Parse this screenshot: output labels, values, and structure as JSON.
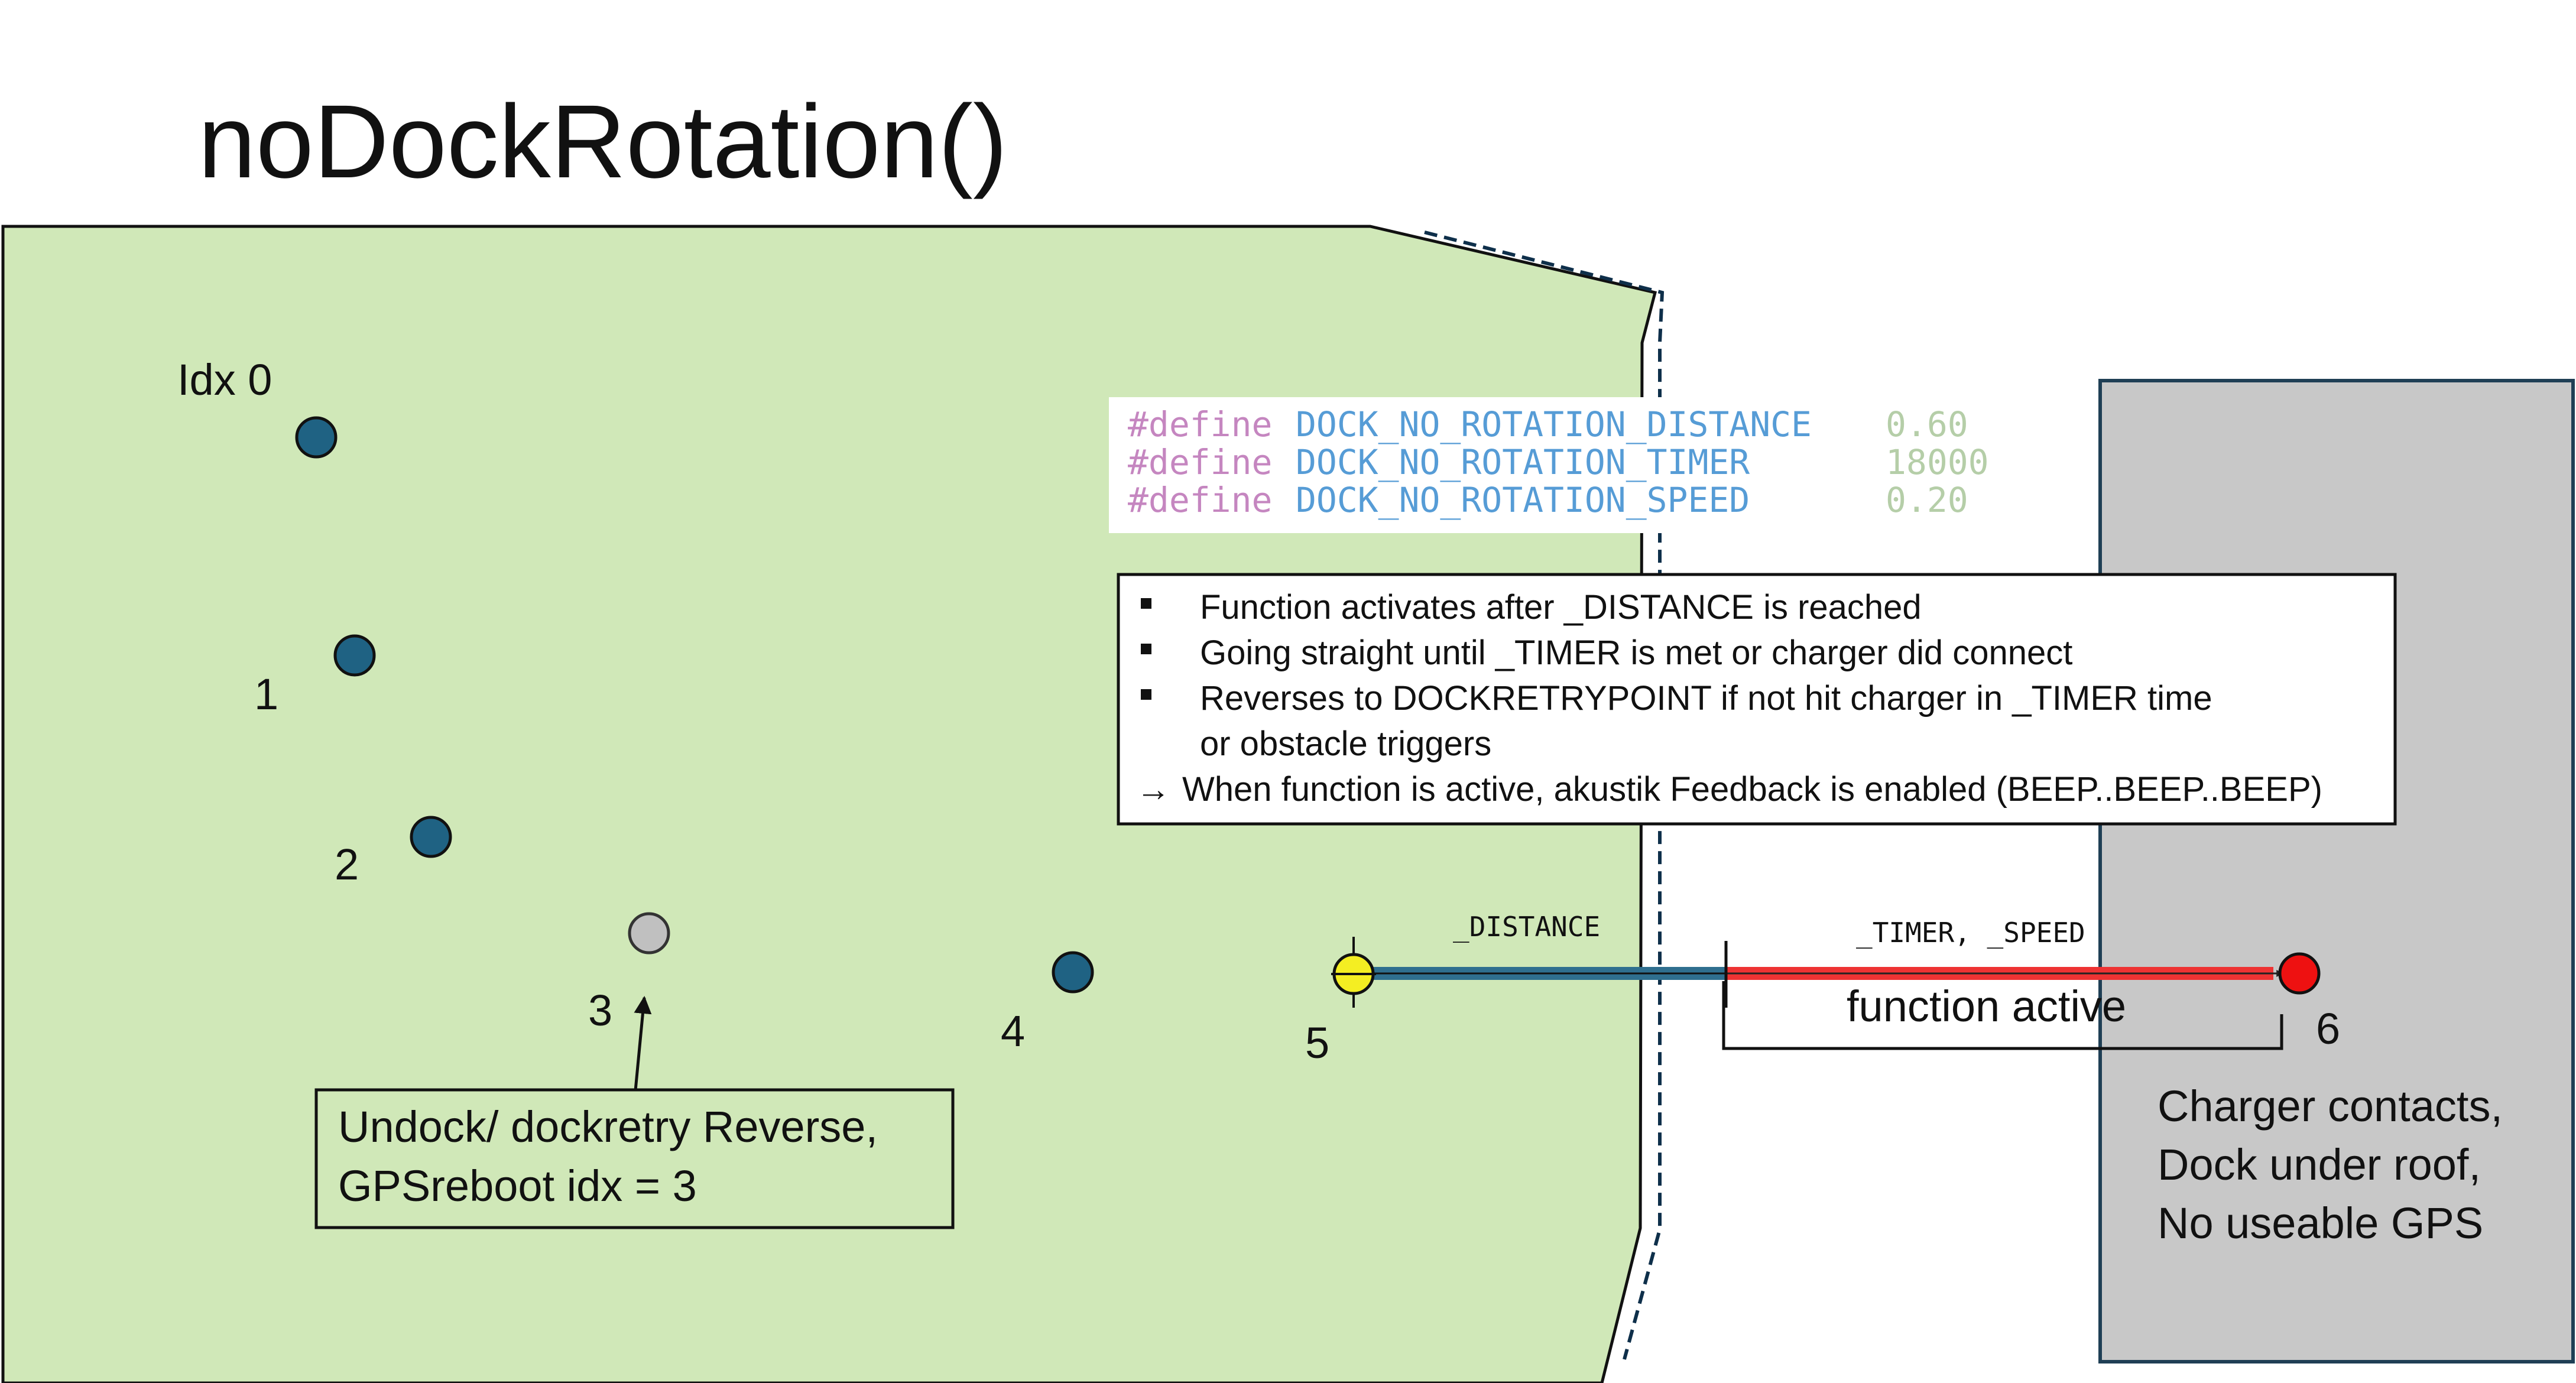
{
  "title": "noDockRotation()",
  "colors": {
    "area_fill": "#d0e8b8",
    "dock_fill": "#c8c8c8",
    "point_dark": "#1f6283",
    "point_gray": "#c0c0c0",
    "point_yellow": "#f4ee22",
    "point_red": "#ee1111",
    "define_keyword": "#c586c0",
    "define_name": "#569cd6",
    "define_value": "#b5cea8",
    "distance_bar": "#2f6f8f",
    "timer_bar": "#ee3333"
  },
  "points": [
    {
      "idx": "0",
      "label": "Idx 0",
      "kind": "dark"
    },
    {
      "idx": "1",
      "label": "1",
      "kind": "dark"
    },
    {
      "idx": "2",
      "label": "2",
      "kind": "dark"
    },
    {
      "idx": "3",
      "label": "3",
      "kind": "gray"
    },
    {
      "idx": "4",
      "label": "4",
      "kind": "dark"
    },
    {
      "idx": "5",
      "label": "5",
      "kind": "yellow"
    },
    {
      "idx": "6",
      "label": "6",
      "kind": "red"
    }
  ],
  "defines": [
    {
      "keyword": "#define",
      "name": "DOCK_NO_ROTATION_DISTANCE",
      "value": "0.60"
    },
    {
      "keyword": "#define",
      "name": "DOCK_NO_ROTATION_TIMER",
      "value": "18000"
    },
    {
      "keyword": "#define",
      "name": "DOCK_NO_ROTATION_SPEED",
      "value": "0.20"
    }
  ],
  "notes": {
    "bullets": [
      "Function activates after _DISTANCE is reached",
      "Going straight until _TIMER is met or charger did connect",
      "Reverses to DOCKRETRYPOINT if not hit charger in _TIMER time",
      "or obstacle triggers"
    ],
    "arrow_symbol": "→",
    "arrow_line": "When function is active, akustik Feedback is enabled (BEEP..BEEP..BEEP)"
  },
  "labels": {
    "distance": "_DISTANCE",
    "timer_speed": "_TIMER, _SPEED",
    "function_active": "function active"
  },
  "undock_box": {
    "line1": "Undock/ dockretry Reverse,",
    "line2": "GPSreboot idx = 3"
  },
  "charger": {
    "line1": "Charger contacts,",
    "line2": "Dock under roof,",
    "line3": "No useable GPS"
  }
}
